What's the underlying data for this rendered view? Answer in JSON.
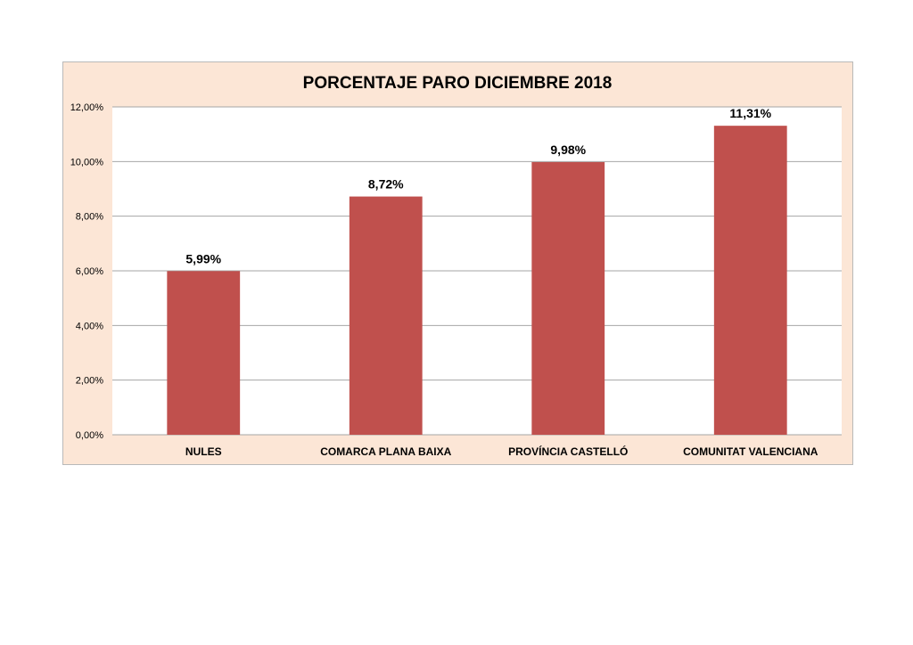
{
  "chart_data": {
    "type": "bar",
    "title": "PORCENTAJE PARO DICIEMBRE 2018",
    "categories": [
      "NULES",
      "COMARCA PLANA BAIXA",
      "PROVÍNCIA CASTELLÓ",
      "COMUNITAT VALENCIANA"
    ],
    "values": [
      5.99,
      8.72,
      9.98,
      11.31
    ],
    "data_labels": [
      "5,99%",
      "8,72%",
      "9,98%",
      "11,31%"
    ],
    "ylim": [
      0,
      12
    ],
    "yticks": [
      0,
      2,
      4,
      6,
      8,
      10,
      12
    ],
    "ytick_labels": [
      "0,00%",
      "2,00%",
      "4,00%",
      "6,00%",
      "8,00%",
      "10,00%",
      "12,00%"
    ],
    "xlabel": "",
    "ylabel": "",
    "grid": true,
    "legend": "none",
    "colors": {
      "bar": "#c0504d",
      "frame_background": "#fce6d6",
      "plot_background": "#ffffff",
      "gridline": "#a6a6a6"
    }
  }
}
